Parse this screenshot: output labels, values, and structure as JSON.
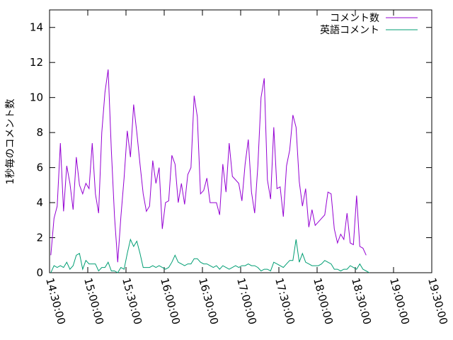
{
  "chart_data": {
    "type": "line",
    "title": "",
    "xlabel": "",
    "ylabel": "1秒毎のコメント数",
    "x_start": "14:30:00",
    "x_step_minutes": 2.5,
    "xlim": [
      "14:30:00",
      "19:30:00"
    ],
    "ylim": [
      0,
      15
    ],
    "x_ticks": [
      "14:30:00",
      "15:00:00",
      "15:30:00",
      "16:00:00",
      "16:30:00",
      "17:00:00",
      "17:30:00",
      "18:00:00",
      "18:30:00",
      "19:00:00",
      "19:30:00"
    ],
    "y_ticks": [
      "0",
      "2",
      "4",
      "6",
      "8",
      "10",
      "12",
      "14"
    ],
    "grid": false,
    "legend_position": "top-right",
    "series": [
      {
        "name": "コメント数",
        "color": "#9400d3",
        "values": [
          1.0,
          3.1,
          3.8,
          7.4,
          3.5,
          6.1,
          5.1,
          3.6,
          6.6,
          5.0,
          4.5,
          5.1,
          4.8,
          7.4,
          4.5,
          3.4,
          8.0,
          10.3,
          11.6,
          7.0,
          3.2,
          0.6,
          3.2,
          5.4,
          8.1,
          6.6,
          9.6,
          8.0,
          6.2,
          4.5,
          3.5,
          3.8,
          6.4,
          5.1,
          6.0,
          2.5,
          4.0,
          4.1,
          6.7,
          6.2,
          4.0,
          5.1,
          3.9,
          5.6,
          6.0,
          10.1,
          8.9,
          4.5,
          4.7,
          5.4,
          4.0,
          4.0,
          4.0,
          3.3,
          6.2,
          4.6,
          7.4,
          5.5,
          5.3,
          5.1,
          4.1,
          6.2,
          7.6,
          4.6,
          3.4,
          6.1,
          10.0,
          11.1,
          5.3,
          4.2,
          8.3,
          4.8,
          4.9,
          3.2,
          6.1,
          7.0,
          9.0,
          8.3,
          5.2,
          3.8,
          4.8,
          2.6,
          3.6,
          2.7,
          2.9,
          3.1,
          3.3,
          4.6,
          4.5,
          2.5,
          1.7,
          2.2,
          1.9,
          3.4,
          1.7,
          1.6,
          4.4,
          1.5,
          1.4,
          1.0
        ]
      },
      {
        "name": "英語コメント",
        "color": "#009e73",
        "values": [
          0.0,
          0.4,
          0.3,
          0.4,
          0.3,
          0.6,
          0.2,
          0.4,
          1.0,
          1.1,
          0.2,
          0.7,
          0.5,
          0.5,
          0.5,
          0.1,
          0.3,
          0.3,
          0.6,
          0.1,
          0.1,
          0.0,
          0.3,
          0.2,
          1.1,
          1.9,
          1.5,
          1.8,
          1.1,
          0.3,
          0.3,
          0.3,
          0.4,
          0.3,
          0.4,
          0.3,
          0.2,
          0.3,
          0.6,
          1.0,
          0.6,
          0.5,
          0.4,
          0.5,
          0.5,
          0.8,
          0.8,
          0.6,
          0.5,
          0.5,
          0.4,
          0.3,
          0.4,
          0.2,
          0.4,
          0.3,
          0.2,
          0.3,
          0.4,
          0.3,
          0.4,
          0.4,
          0.5,
          0.4,
          0.4,
          0.3,
          0.1,
          0.2,
          0.2,
          0.1,
          0.6,
          0.5,
          0.4,
          0.3,
          0.5,
          0.7,
          0.7,
          1.9,
          0.6,
          1.1,
          0.6,
          0.5,
          0.4,
          0.4,
          0.4,
          0.5,
          0.7,
          0.6,
          0.5,
          0.2,
          0.2,
          0.1,
          0.2,
          0.2,
          0.4,
          0.3,
          0.2,
          0.5,
          0.2,
          0.1,
          0.0
        ]
      }
    ]
  }
}
